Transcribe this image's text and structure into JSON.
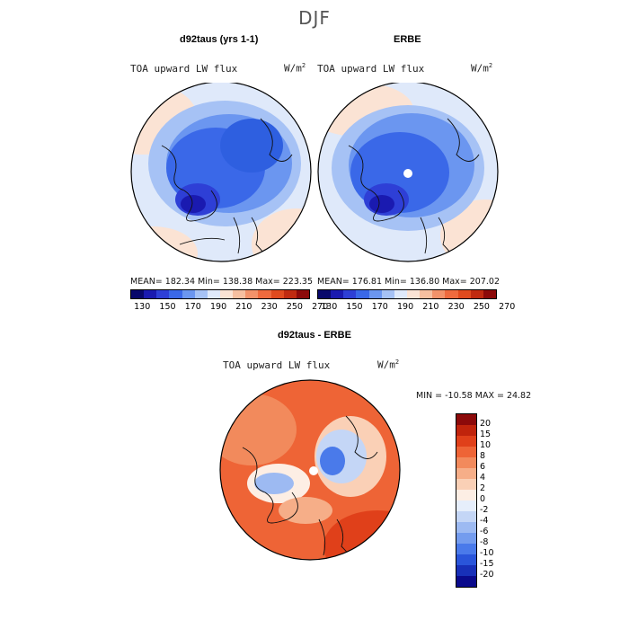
{
  "title": "DJF",
  "panels": [
    {
      "id": "model",
      "heading": "d92taus (yrs 1-1)",
      "variable": "TOA upward LW flux",
      "units_base": "W/m",
      "units_exp": "2",
      "stats": "MEAN= 182.34   Min= 138.38   Max= 223.35"
    },
    {
      "id": "obs",
      "heading": "ERBE",
      "variable": "TOA upward LW flux",
      "units_base": "W/m",
      "units_exp": "2",
      "stats": "MEAN= 176.81   Min= 136.80   Max= 207.02"
    }
  ],
  "abs_colorbar": {
    "colors": [
      "#08086b",
      "#1a1ab0",
      "#2e3fd6",
      "#3a68e8",
      "#6b96f0",
      "#a6c2f5",
      "#dfe9fa",
      "#fbe3d4",
      "#f6bfa0",
      "#f2926a",
      "#ee6a3e",
      "#e04a1e",
      "#c02a10",
      "#8c0a0a"
    ],
    "tick_labels": [
      "130",
      "150",
      "170",
      "190",
      "210",
      "230",
      "250",
      "270"
    ]
  },
  "diff_panel": {
    "heading": "d92taus - ERBE",
    "variable": "TOA upward LW flux",
    "units_base": "W/m",
    "units_exp": "2",
    "stats": "MIN = -10.58  MAX =  24.82"
  },
  "diff_colorbar": {
    "colors_top_to_bottom": [
      "#8c0a0a",
      "#c0240c",
      "#e0401a",
      "#ee6436",
      "#f28a5c",
      "#f6ae88",
      "#fad0b6",
      "#fdeee4",
      "#e6eefb",
      "#c4d6f6",
      "#9dbaf2",
      "#749cee",
      "#4a7aea",
      "#2a55da",
      "#1830b8",
      "#0a0a8c"
    ],
    "labels_top_to_bottom": [
      "20",
      "15",
      "10",
      "8",
      "6",
      "4",
      "2",
      "0",
      "-2",
      "-4",
      "-6",
      "-8",
      "-10",
      "-15",
      "-20"
    ]
  }
}
